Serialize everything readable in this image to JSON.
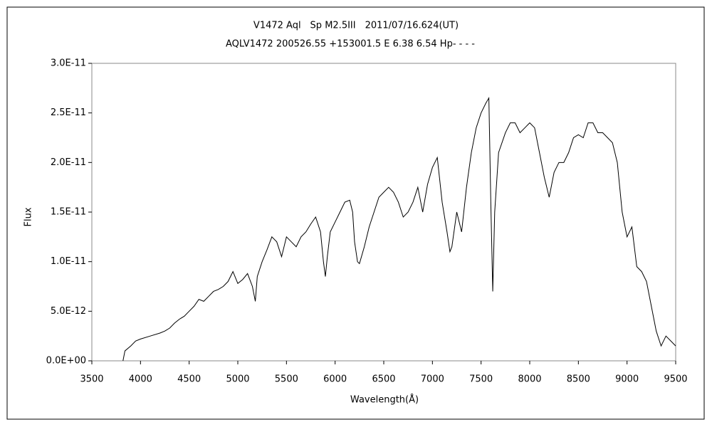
{
  "chart_data": {
    "type": "line",
    "title": "V1472 Aql　Sp M2.5III　2011/07/16.624(UT)",
    "subtitle": "AQLV1472 200526.55 +153001.5 E 6.38 6.54 Hp- - - -",
    "x_label": "Wavelength(Å)",
    "y_label": "Flux",
    "color": "#000000",
    "x": [
      3820,
      3840,
      3900,
      3950,
      4000,
      4100,
      4200,
      4250,
      4300,
      4350,
      4400,
      4450,
      4500,
      4550,
      4600,
      4650,
      4700,
      4750,
      4800,
      4850,
      4900,
      4950,
      5000,
      5050,
      5100,
      5150,
      5180,
      5200,
      5250,
      5300,
      5350,
      5400,
      5450,
      5500,
      5550,
      5600,
      5650,
      5700,
      5750,
      5800,
      5850,
      5880,
      5900,
      5920,
      5950,
      6000,
      6050,
      6100,
      6150,
      6180,
      6200,
      6230,
      6250,
      6300,
      6350,
      6400,
      6450,
      6500,
      6550,
      6600,
      6650,
      6700,
      6750,
      6800,
      6850,
      6880,
      6900,
      6950,
      7000,
      7050,
      7100,
      7150,
      7180,
      7200,
      7250,
      7300,
      7350,
      7400,
      7450,
      7500,
      7550,
      7580,
      7600,
      7620,
      7640,
      7680,
      7750,
      7800,
      7850,
      7900,
      7950,
      8000,
      8050,
      8100,
      8150,
      8200,
      8250,
      8300,
      8350,
      8400,
      8450,
      8500,
      8550,
      8600,
      8650,
      8700,
      8750,
      8800,
      8850,
      8900,
      8950,
      9000,
      9050,
      9100,
      9150,
      9200,
      9250,
      9300,
      9350,
      9400,
      9450,
      9500
    ],
    "values": [
      0.0,
      1e-12,
      1.5e-12,
      2e-12,
      2.2e-12,
      2.5e-12,
      2.8e-12,
      3e-12,
      3.3e-12,
      3.8e-12,
      4.2e-12,
      4.5e-12,
      5e-12,
      5.5e-12,
      6.2e-12,
      6e-12,
      6.5e-12,
      7e-12,
      7.2e-12,
      7.5e-12,
      8e-12,
      9e-12,
      7.8e-12,
      8.2e-12,
      8.8e-12,
      7.5e-12,
      6e-12,
      8.5e-12,
      1e-11,
      1.12e-11,
      1.25e-11,
      1.2e-11,
      1.05e-11,
      1.25e-11,
      1.2e-11,
      1.15e-11,
      1.25e-11,
      1.3e-11,
      1.38e-11,
      1.45e-11,
      1.3e-11,
      1e-11,
      8.5e-12,
      1.05e-11,
      1.3e-11,
      1.4e-11,
      1.5e-11,
      1.6e-11,
      1.62e-11,
      1.5e-11,
      1.2e-11,
      1e-11,
      9.8e-12,
      1.15e-11,
      1.35e-11,
      1.5e-11,
      1.65e-11,
      1.7e-11,
      1.75e-11,
      1.7e-11,
      1.6e-11,
      1.45e-11,
      1.5e-11,
      1.6e-11,
      1.75e-11,
      1.6e-11,
      1.5e-11,
      1.78e-11,
      1.95e-11,
      2.05e-11,
      1.6e-11,
      1.3e-11,
      1.1e-11,
      1.15e-11,
      1.5e-11,
      1.3e-11,
      1.75e-11,
      2.1e-11,
      2.35e-11,
      2.5e-11,
      2.6e-11,
      2.65e-11,
      1.6e-11,
      7e-12,
      1.5e-11,
      2.1e-11,
      2.3e-11,
      2.4e-11,
      2.4e-11,
      2.3e-11,
      2.35e-11,
      2.4e-11,
      2.35e-11,
      2.1e-11,
      1.85e-11,
      1.65e-11,
      1.9e-11,
      2e-11,
      2e-11,
      2.1e-11,
      2.25e-11,
      2.28e-11,
      2.25e-11,
      2.4e-11,
      2.4e-11,
      2.3e-11,
      2.3e-11,
      2.25e-11,
      2.2e-11,
      2e-11,
      1.5e-11,
      1.25e-11,
      1.35e-11,
      9.5e-12,
      9e-12,
      8e-12,
      5.5e-12,
      3e-12,
      1.5e-12,
      2.5e-12,
      2e-12,
      1.5e-12
    ],
    "xlim": [
      3500,
      9500
    ],
    "xticks": [
      3500,
      4000,
      4500,
      5000,
      5500,
      6000,
      6500,
      7000,
      7500,
      8000,
      8500,
      9000,
      9500
    ],
    "ylim": [
      0,
      3e-11
    ],
    "yticks": [
      {
        "value": 0,
        "label": "0.0E+00"
      },
      {
        "value": 5e-12,
        "label": "5.0E-12"
      },
      {
        "value": 1e-11,
        "label": "1.0E-11"
      },
      {
        "value": 1.5e-11,
        "label": "1.5E-11"
      },
      {
        "value": 2e-11,
        "label": "2.0E-11"
      },
      {
        "value": 2.5e-11,
        "label": "2.5E-11"
      },
      {
        "value": 3e-11,
        "label": "3.0E-11"
      }
    ]
  }
}
